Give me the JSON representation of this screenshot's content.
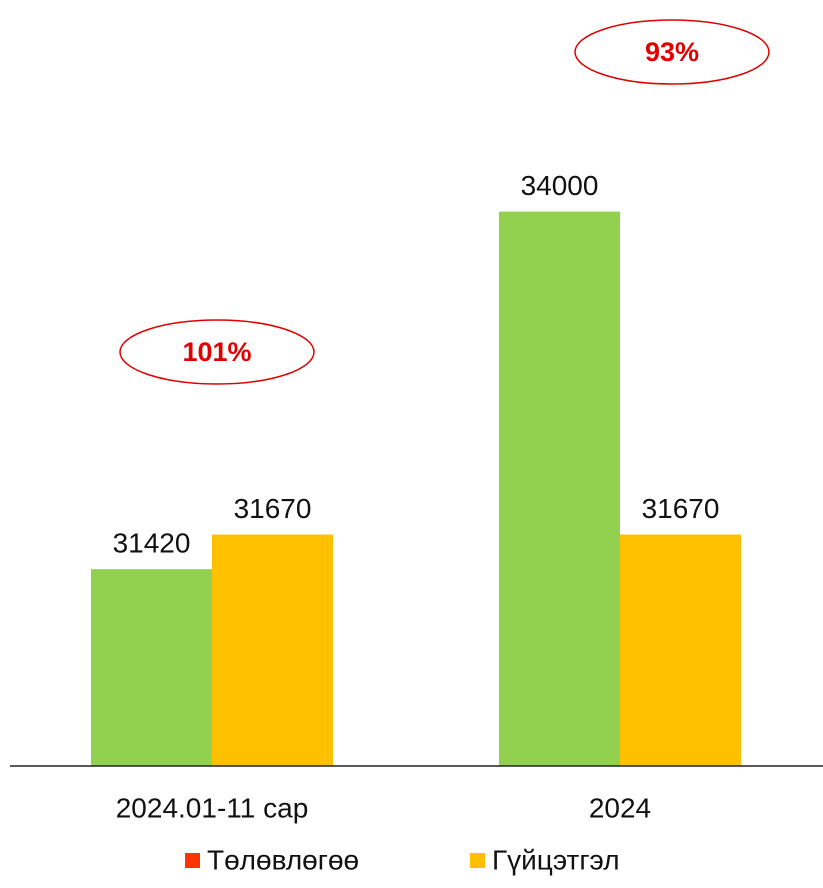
{
  "chart_data": {
    "type": "bar",
    "categories": [
      "2024.01-11 сар",
      "2024"
    ],
    "series": [
      {
        "name": "Төлөвлөгөө",
        "color": "#92D050",
        "legend_color": "#FF3300",
        "values": [
          31420,
          34000
        ]
      },
      {
        "name": "Гүйцэтгэл",
        "color": "#FFC000",
        "legend_color": "#FFC000",
        "values": [
          31670,
          31670
        ]
      }
    ],
    "annotations": [
      "101%",
      "93%"
    ],
    "annotation_color": "#E00000",
    "ylim": [
      30000,
      35000
    ]
  }
}
